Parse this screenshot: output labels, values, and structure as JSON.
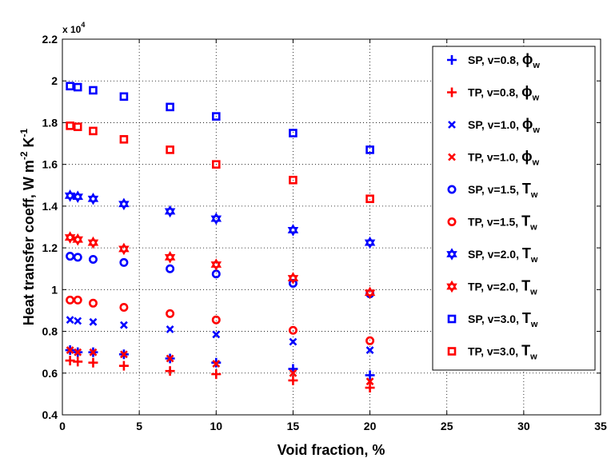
{
  "chart_data": {
    "type": "scatter",
    "xlabel": "Void fraction, %",
    "ylabel": "Heat transfer coeff, W m",
    "ylabel_parts": [
      {
        "text": "Heat transfer coeff, W m",
        "sup": ""
      },
      {
        "text": "",
        "sup": "-2"
      },
      {
        "text": " K",
        "sup": ""
      },
      {
        "text": "",
        "sup": "-1"
      }
    ],
    "y_multiplier_base": "x 10",
    "y_multiplier_exp": "4",
    "xlim": [
      0,
      35
    ],
    "ylim": [
      0.4,
      2.2
    ],
    "xticks": [
      0,
      5,
      10,
      15,
      20,
      25,
      30,
      35
    ],
    "yticks": [
      0.4,
      0.6,
      0.8,
      1,
      1.2,
      1.4,
      1.6,
      1.8,
      2,
      2.2
    ],
    "xtick_labels": [
      "0",
      "5",
      "10",
      "15",
      "20",
      "25",
      "30",
      "35"
    ],
    "ytick_labels": [
      "0.4",
      "0.6",
      "0.8",
      "1",
      "1.2",
      "1.4",
      "1.6",
      "1.8",
      "2",
      "2.2"
    ],
    "grid": true,
    "legend_position": "top-right",
    "series": [
      {
        "name": "SP, v=0.8, ",
        "sym": "ϕ",
        "sub": "w",
        "color": "#0000ff",
        "marker": "plus",
        "x": [
          0.5,
          1,
          2,
          4,
          7,
          10,
          15,
          20
        ],
        "y": [
          0.71,
          0.7,
          0.7,
          0.69,
          0.67,
          0.65,
          0.62,
          0.59
        ]
      },
      {
        "name": "TP, v=0.8, ",
        "sym": "ϕ",
        "sub": "w",
        "color": "#ff0000",
        "marker": "plus",
        "x": [
          0.5,
          1,
          2,
          4,
          7,
          10,
          15,
          20
        ],
        "y": [
          0.66,
          0.655,
          0.65,
          0.635,
          0.61,
          0.595,
          0.565,
          0.53
        ]
      },
      {
        "name": "SP, v=1.0, ",
        "sym": "ϕ",
        "sub": "w",
        "color": "#0000ff",
        "marker": "x",
        "x": [
          0.5,
          1,
          2,
          4,
          7,
          10,
          15,
          20
        ],
        "y": [
          0.855,
          0.85,
          0.845,
          0.83,
          0.81,
          0.785,
          0.75,
          0.71
        ]
      },
      {
        "name": "TP, v=1.0, ",
        "sym": "ϕ",
        "sub": "w",
        "color": "#ff0000",
        "marker": "x",
        "x": [
          0.5,
          1,
          2,
          4,
          7,
          10,
          15,
          20
        ],
        "y": [
          0.71,
          0.7,
          0.7,
          0.69,
          0.67,
          0.645,
          0.6,
          0.56
        ]
      },
      {
        "name": "SP, v=1.5, ",
        "sym": "T",
        "sub": "w",
        "color": "#0000ff",
        "marker": "circle",
        "x": [
          0.5,
          1,
          2,
          4,
          7,
          10,
          15,
          20
        ],
        "y": [
          1.16,
          1.155,
          1.145,
          1.13,
          1.1,
          1.075,
          1.03,
          0.98
        ]
      },
      {
        "name": "TP, v=1.5, ",
        "sym": "T",
        "sub": "w",
        "color": "#ff0000",
        "marker": "circle",
        "x": [
          0.5,
          1,
          2,
          4,
          7,
          10,
          15,
          20
        ],
        "y": [
          0.95,
          0.95,
          0.935,
          0.915,
          0.885,
          0.855,
          0.805,
          0.755
        ]
      },
      {
        "name": "SP, v=2.0, ",
        "sym": "T",
        "sub": "w",
        "color": "#0000ff",
        "marker": "hexagram",
        "x": [
          0.5,
          1,
          2,
          4,
          7,
          10,
          15,
          20
        ],
        "y": [
          1.45,
          1.445,
          1.435,
          1.41,
          1.375,
          1.34,
          1.285,
          1.225
        ]
      },
      {
        "name": "TP, v=2.0, ",
        "sym": "T",
        "sub": "w",
        "color": "#ff0000",
        "marker": "hexagram",
        "x": [
          0.5,
          1,
          2,
          4,
          7,
          10,
          15,
          20
        ],
        "y": [
          1.25,
          1.24,
          1.225,
          1.195,
          1.155,
          1.12,
          1.055,
          0.985
        ]
      },
      {
        "name": "SP, v=3.0, ",
        "sym": "T",
        "sub": "w",
        "color": "#0000ff",
        "marker": "square",
        "x": [
          0.5,
          1,
          2,
          4,
          7,
          10,
          15,
          20
        ],
        "y": [
          1.975,
          1.97,
          1.955,
          1.925,
          1.875,
          1.83,
          1.75,
          1.67
        ]
      },
      {
        "name": "TP, v=3.0, ",
        "sym": "T",
        "sub": "w",
        "color": "#ff0000",
        "marker": "square",
        "x": [
          0.5,
          1,
          2,
          4,
          7,
          10,
          15,
          20
        ],
        "y": [
          1.785,
          1.78,
          1.76,
          1.72,
          1.67,
          1.6,
          1.525,
          1.435
        ]
      }
    ]
  }
}
